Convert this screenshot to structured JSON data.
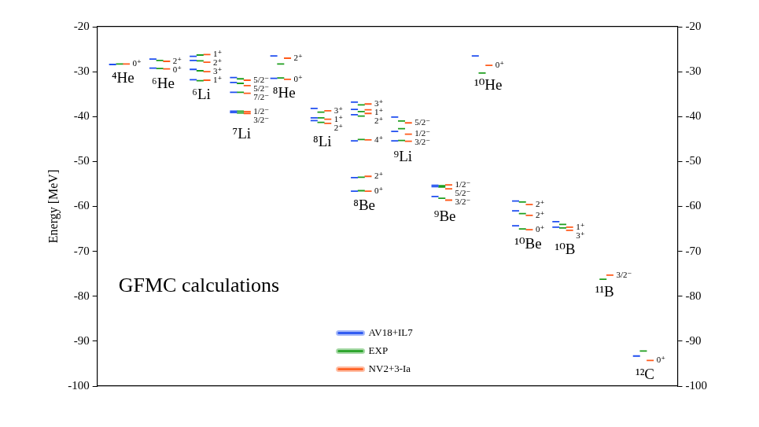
{
  "chart_data": {
    "type": "scatter",
    "marker": "line",
    "annotation": "GFMC calculations",
    "y_label": "Energy [MeV]",
    "ylim": [
      -100,
      -20
    ],
    "yticks": [
      -100,
      -90,
      -80,
      -70,
      -60,
      -50,
      -40,
      -30,
      -20
    ],
    "y2lim": [
      -100,
      -20
    ],
    "y2ticks": [
      -100,
      -90,
      -80,
      -70,
      -60,
      -50,
      -40,
      -30,
      -20
    ],
    "grid": false,
    "tick_labels": "y",
    "legend": "lower center",
    "series": [
      {
        "name": "AV18+IL7",
        "color": "#1f4ef0"
      },
      {
        "name": "EXP",
        "color": "#1e9e1e"
      },
      {
        "name": "NV2+3-Ia",
        "color": "#ff5a1a"
      }
    ],
    "categories": [
      "⁴He",
      "⁶He",
      "⁶Li",
      "⁷Li",
      "⁸He",
      "⁸Li",
      "⁸Be",
      "⁹Li",
      "⁹Be",
      "¹⁰He",
      "¹⁰Be",
      "¹⁰B",
      "¹¹B",
      "¹²C"
    ],
    "levels": [
      [
        {
          "label": "0⁺",
          "values": [
            -28.4,
            -28.3,
            -28.3
          ]
        }
      ],
      [
        {
          "label": "2⁺",
          "values": [
            -27.2,
            -27.5,
            -27.7
          ]
        },
        {
          "label": "0⁺",
          "values": [
            -29.2,
            -29.3,
            -29.4
          ]
        }
      ],
      [
        {
          "label": "1⁺",
          "values": [
            -26.6,
            -26.3,
            -26.2
          ]
        },
        {
          "label": "2⁺",
          "values": [
            -27.5,
            -27.6,
            -27.9
          ]
        },
        {
          "label": "3⁺",
          "values": [
            -29.5,
            -29.8,
            -30.0
          ]
        },
        {
          "label": "1⁺",
          "values": [
            -31.8,
            -32.0,
            -31.9
          ]
        }
      ],
      [
        {
          "label": "5/2⁻",
          "values": [
            -31.3,
            -31.6,
            -31.9
          ]
        },
        {
          "label": "5/2⁻",
          "values": [
            -32.4,
            -32.6,
            -33.1
          ]
        },
        {
          "label": "7/2⁻",
          "values": [
            -34.6,
            -34.6,
            -34.8
          ]
        },
        {
          "label": "1/2⁻",
          "values": [
            -38.8,
            -38.8,
            -38.9
          ]
        },
        {
          "label": "3/2⁻",
          "values": [
            -39.1,
            -39.2,
            -39.3
          ]
        }
      ],
      [
        {
          "label": "2⁺",
          "values": [
            -26.5,
            -28.3,
            -27.0
          ]
        },
        {
          "label": "0⁺",
          "values": [
            -31.5,
            -31.4,
            -31.7
          ]
        }
      ],
      [
        {
          "label": "3⁺",
          "values": [
            -38.2,
            -39.0,
            -38.7
          ]
        },
        {
          "label": "1⁺",
          "values": [
            -40.3,
            -40.3,
            -40.6
          ]
        },
        {
          "label": "2⁺",
          "values": [
            -40.9,
            -41.3,
            -41.5
          ]
        }
      ],
      [
        {
          "label": "3⁺",
          "values": [
            -36.8,
            -37.4,
            -37.2
          ]
        },
        {
          "label": "1⁺",
          "values": [
            -38.4,
            -38.9,
            -38.5
          ]
        },
        {
          "label": "2⁺",
          "values": [
            -39.6,
            -39.9,
            -39.3
          ]
        },
        {
          "label": "4⁺",
          "values": [
            -45.4,
            -45.1,
            -45.2
          ]
        },
        {
          "label": "2⁺",
          "values": [
            -53.6,
            -53.5,
            -53.3
          ]
        },
        {
          "label": "0⁺",
          "values": [
            -56.6,
            -56.5,
            -56.6
          ]
        }
      ],
      [
        {
          "label": "5/2⁻",
          "values": [
            -40.1,
            -41.0,
            -41.4
          ]
        },
        {
          "label": "1/2⁻",
          "values": [
            -43.3,
            -42.7,
            -43.9
          ]
        },
        {
          "label": "3/2⁻",
          "values": [
            -45.4,
            -45.3,
            -45.5
          ]
        }
      ],
      [
        {
          "label": "1/2⁻",
          "values": [
            -55.3,
            -55.4,
            -55.2
          ]
        },
        {
          "label": "5/2⁻",
          "values": [
            -55.6,
            -55.7,
            -56.1
          ]
        },
        {
          "label": "3/2⁻",
          "values": [
            -57.8,
            -58.2,
            -58.6
          ]
        }
      ],
      [
        {
          "label": "0⁺",
          "values": [
            -26.5,
            -30.3,
            -28.6
          ]
        }
      ],
      [
        {
          "label": "2⁺",
          "values": [
            -58.8,
            -59.0,
            -59.6
          ]
        },
        {
          "label": "2⁺",
          "values": [
            -61.0,
            -61.6,
            -62.0
          ]
        },
        {
          "label": "0⁺",
          "values": [
            -64.3,
            -65.0,
            -65.2
          ]
        }
      ],
      [
        {
          "label": "1⁺",
          "values": [
            -63.4,
            -64.0,
            -64.6
          ]
        },
        {
          "label": "3⁺",
          "values": [
            -64.6,
            -64.8,
            -65.3
          ]
        }
      ],
      [
        {
          "label": "3/2⁻",
          "values": [
            null,
            -76.2,
            -75.3
          ]
        }
      ],
      [
        {
          "label": "0⁺",
          "values": [
            -93.3,
            -92.2,
            -94.3
          ]
        }
      ]
    ]
  }
}
